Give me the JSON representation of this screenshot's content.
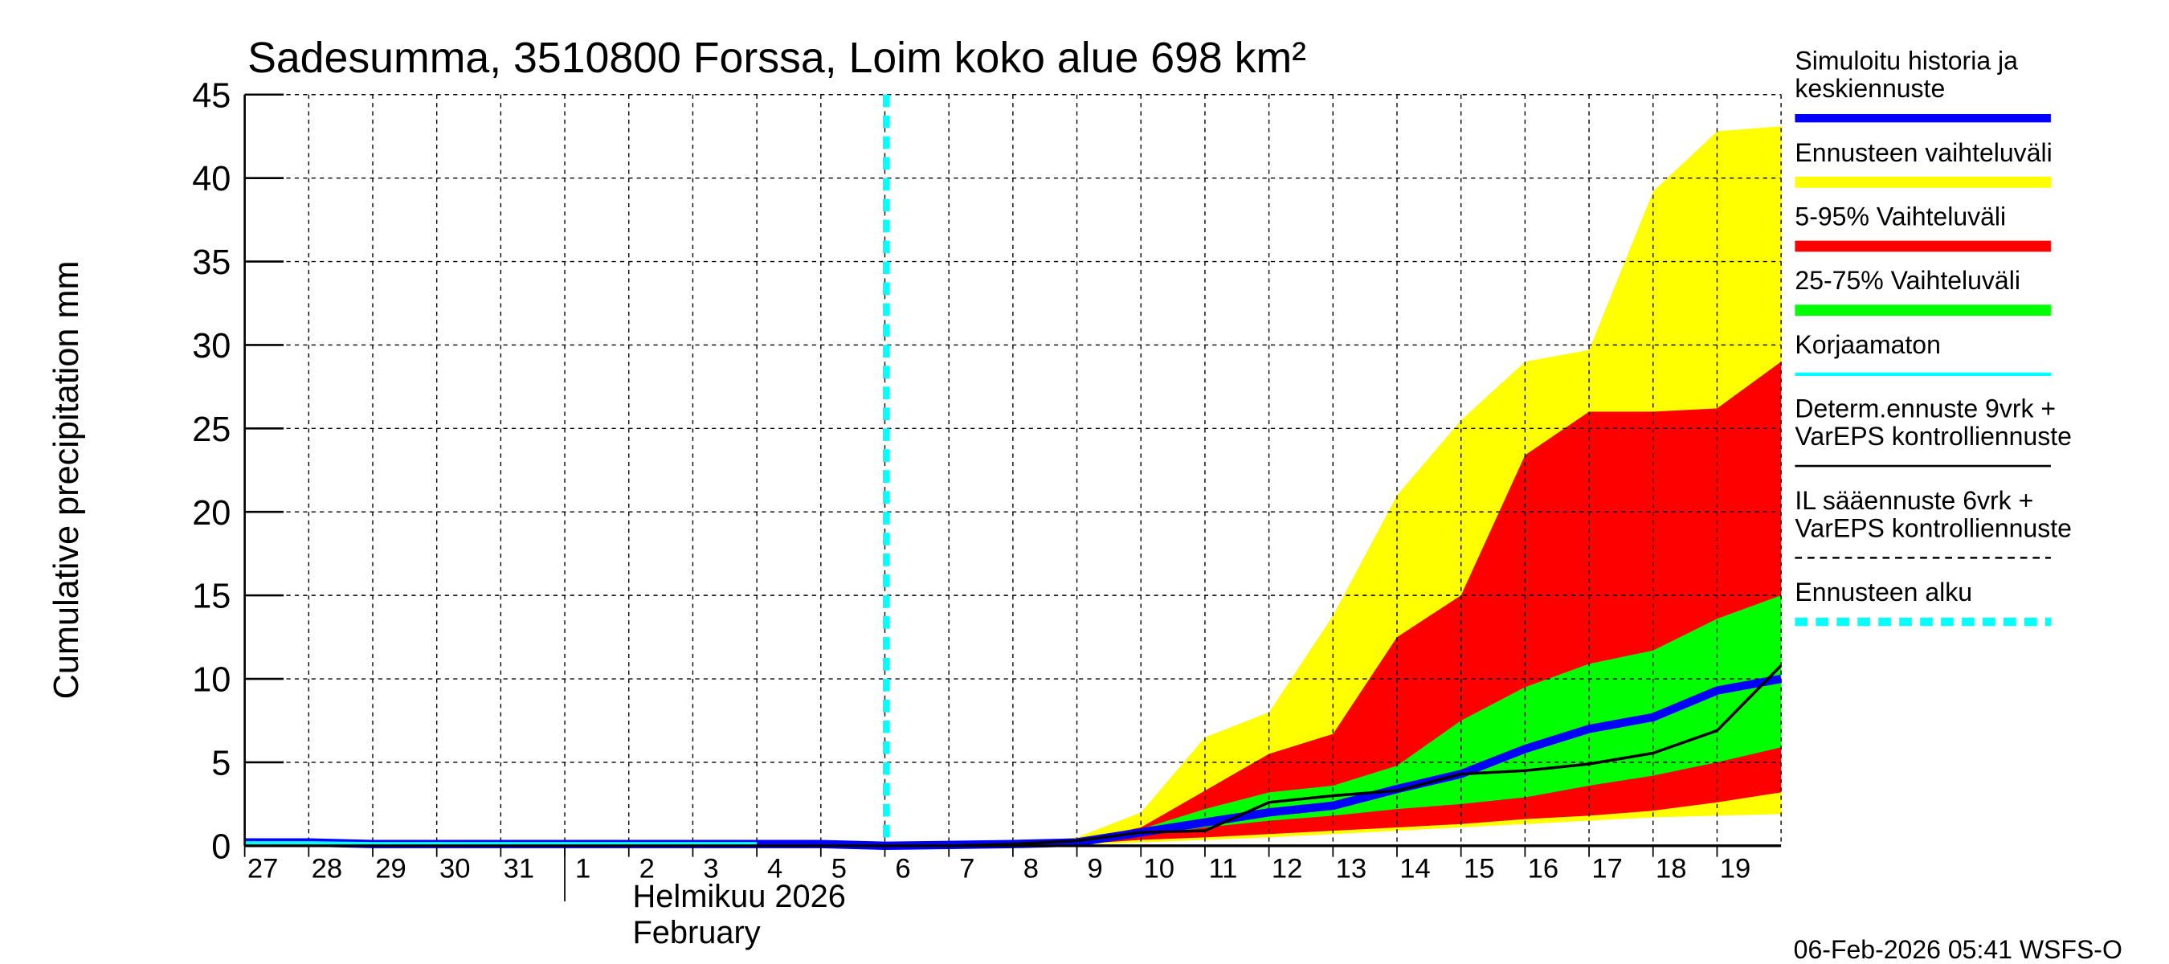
{
  "chart_data": {
    "type": "area",
    "title": "Sadesumma, 3510800 Forssa, Loim koko alue 698 km²",
    "ylabel": "Cumulative precipitation   mm",
    "xlabel_month_fi": "Helmikuu  2026",
    "xlabel_month_en": "February",
    "ylim": [
      0,
      45
    ],
    "yticks": [
      0,
      5,
      10,
      15,
      20,
      25,
      30,
      35,
      40,
      45
    ],
    "xlim": [
      "2026-01-27",
      "2026-02-20"
    ],
    "day_labels": [
      "27",
      "28",
      "29",
      "30",
      "31",
      "1",
      "2",
      "3",
      "4",
      "5",
      "6",
      "7",
      "8",
      "9",
      "10",
      "11",
      "12",
      "13",
      "14",
      "15",
      "16",
      "17",
      "18",
      "19"
    ],
    "grid": true,
    "legend_placement": "right",
    "forecast_start": "2026-02-06",
    "forecast_dates": [
      "2026-02-06",
      "2026-02-07",
      "2026-02-08",
      "2026-02-09",
      "2026-02-10",
      "2026-02-11",
      "2026-02-12",
      "2026-02-13",
      "2026-02-14",
      "2026-02-15",
      "2026-02-16",
      "2026-02-17",
      "2026-02-18",
      "2026-02-19",
      "2026-02-20"
    ],
    "bands": [
      {
        "name": "Ennusteen vaihteluväli",
        "color": "#ffff00",
        "lower": [
          0,
          0,
          0,
          0.05,
          0.2,
          0.35,
          0.5,
          0.7,
          0.9,
          1.1,
          1.3,
          1.5,
          1.7,
          1.8,
          1.9
        ],
        "upper": [
          0,
          0,
          0.1,
          0.5,
          2,
          6.5,
          8,
          13.8,
          21,
          25.5,
          29,
          29.7,
          39.2,
          42.8,
          43.1
        ]
      },
      {
        "name": "5-95% Vaihteluväli",
        "color": "#ff0000",
        "lower": [
          0,
          0,
          0.03,
          0.1,
          0.35,
          0.5,
          0.7,
          0.9,
          1.1,
          1.3,
          1.6,
          1.8,
          2.1,
          2.6,
          3.2
        ],
        "upper": [
          0,
          0,
          0.1,
          0.3,
          1.1,
          3.3,
          5.5,
          6.7,
          12.5,
          15,
          23.4,
          26,
          26,
          26.2,
          29
        ]
      },
      {
        "name": "25-75% Vaihteluväli",
        "color": "#00ff00",
        "lower": [
          0,
          0,
          0.05,
          0.15,
          0.6,
          1.1,
          1.5,
          1.8,
          2.2,
          2.5,
          2.9,
          3.6,
          4.2,
          5.0,
          5.9
        ],
        "upper": [
          0,
          0,
          0.1,
          0.25,
          1.0,
          2.2,
          3.2,
          3.6,
          4.8,
          7.5,
          9.5,
          10.9,
          11.7,
          13.6,
          15
        ]
      }
    ],
    "series": [
      {
        "name": "Simuloitu historia ja keskiennuste",
        "color": "#0000ff",
        "x": [
          "2026-01-27",
          "2026-01-28",
          "2026-01-29",
          "2026-01-30",
          "2026-01-31",
          "2026-02-01",
          "2026-02-02",
          "2026-02-03",
          "2026-02-04",
          "2026-02-05",
          "2026-02-06",
          "2026-02-07",
          "2026-02-08",
          "2026-02-09",
          "2026-02-10",
          "2026-02-11",
          "2026-02-12",
          "2026-02-13",
          "2026-02-14",
          "2026-02-15",
          "2026-02-16",
          "2026-02-17",
          "2026-02-18",
          "2026-02-19",
          "2026-02-20"
        ],
        "y": [
          0.2,
          0.2,
          0.1,
          0.1,
          0.1,
          0.1,
          0.1,
          0.1,
          0.1,
          0.1,
          0,
          0.05,
          0.1,
          0.2,
          0.8,
          1.4,
          2.0,
          2.4,
          3.4,
          4.3,
          5.8,
          7.0,
          7.7,
          9.3,
          10.0
        ]
      },
      {
        "name": "Korjaamaton",
        "color": "#00ffff",
        "x": [
          "2026-01-27",
          "2026-01-28",
          "2026-01-29",
          "2026-01-30",
          "2026-01-31",
          "2026-02-01",
          "2026-02-02",
          "2026-02-03",
          "2026-02-04"
        ],
        "y": [
          0.15,
          0.15,
          0.1,
          0.1,
          0.1,
          0.1,
          0.1,
          0.1,
          0.1
        ]
      },
      {
        "name": "Determ.ennuste 9vrk + VarEPS kontrolliennuste",
        "color": "#000000",
        "x": [
          "2026-02-06",
          "2026-02-07",
          "2026-02-08",
          "2026-02-09",
          "2026-02-10",
          "2026-02-11",
          "2026-02-12",
          "2026-02-13",
          "2026-02-14",
          "2026-02-15",
          "2026-02-16",
          "2026-02-17",
          "2026-02-18",
          "2026-02-19",
          "2026-02-20"
        ],
        "y": [
          0,
          0,
          0.1,
          0.3,
          0.8,
          0.9,
          2.6,
          3.0,
          3.3,
          4.3,
          4.5,
          4.9,
          5.55,
          6.9,
          10.8
        ]
      }
    ],
    "legend": [
      {
        "lines": [
          "Simuloitu historia ja",
          "keskiennuste"
        ],
        "color": "#0000ff",
        "style": "thick"
      },
      {
        "lines": [
          "Ennusteen vaihteluväli"
        ],
        "color": "#ffff00",
        "style": "band"
      },
      {
        "lines": [
          "5-95% Vaihteluväli"
        ],
        "color": "#ff0000",
        "style": "band"
      },
      {
        "lines": [
          "25-75% Vaihteluväli"
        ],
        "color": "#00ff00",
        "style": "band"
      },
      {
        "lines": [
          "Korjaamaton"
        ],
        "color": "#00ffff",
        "style": "thin"
      },
      {
        "lines": [
          "Determ.ennuste 9vrk +",
          "VarEPS kontrolliennuste"
        ],
        "color": "#000000",
        "style": "solid"
      },
      {
        "lines": [
          "IL sääennuste 6vrk  +",
          "VarEPS kontrolliennuste"
        ],
        "color": "#000000",
        "style": "dashed"
      },
      {
        "lines": [
          "Ennusteen alku"
        ],
        "color": "#00ffff",
        "style": "thickdashed"
      }
    ]
  },
  "footer": "06-Feb-2026 05:41 WSFS-O"
}
